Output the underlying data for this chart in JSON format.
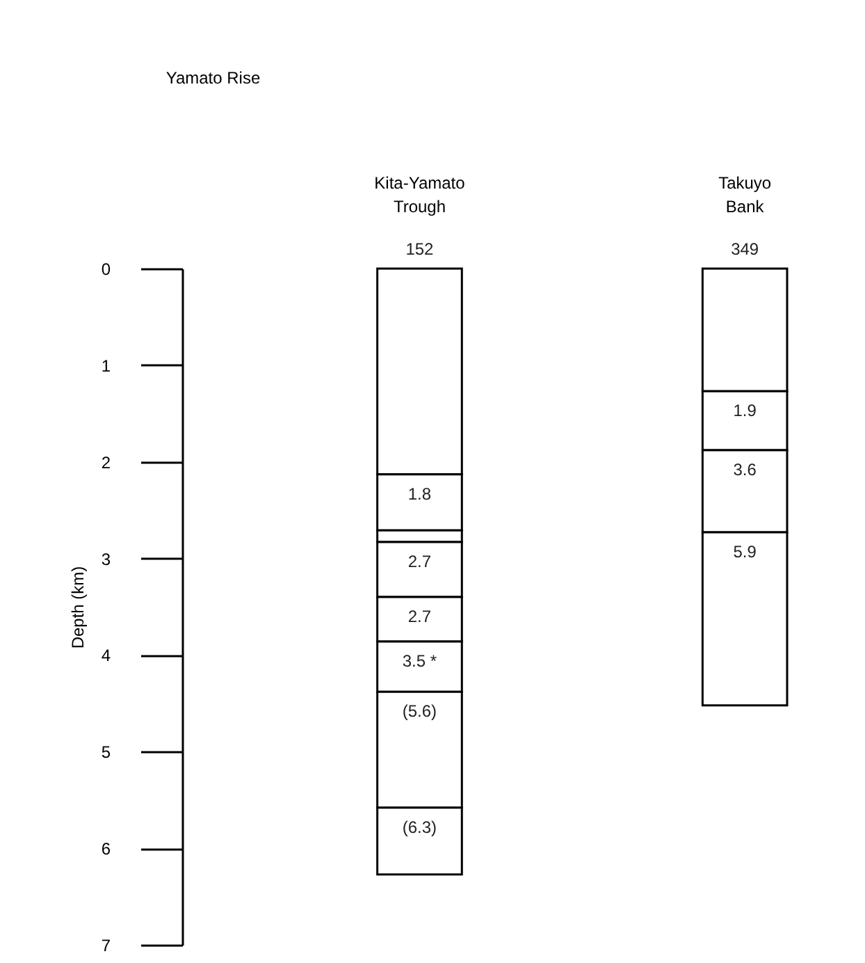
{
  "chart_data": {
    "type": "bar",
    "stacked": true,
    "title": "Yamato Rise",
    "ylabel": "Depth (km)",
    "categories": [
      "Kita-Yamato Trough",
      "Takuyo Bank"
    ],
    "series": [
      {
        "color": "#ffffff",
        "values": [
          2.13,
          1.27
        ]
      },
      {
        "color": "#ffffff",
        "values": [
          0.58,
          0.61
        ]
      },
      {
        "color": "#ffffff",
        "values": [
          0.12,
          0.85
        ]
      },
      {
        "color": "#ffffff",
        "values": [
          0.57,
          1.79
        ]
      },
      {
        "color": "#ffffff",
        "values": [
          0.46,
          null
        ]
      },
      {
        "color": "#ffffff",
        "values": [
          0.52,
          null
        ]
      },
      {
        "color": "#ffffff",
        "values": [
          1.2,
          null
        ]
      },
      {
        "color": "#ffffff",
        "values": [
          0.69,
          null
        ]
      }
    ],
    "annotations": [
      {
        "text": "152",
        "x": "Kita-Yamato Trough",
        "y": 0
      },
      {
        "text": "349",
        "x": "Takuyo Bank",
        "y": 0
      },
      {
        "text": "1.8",
        "x": "Kita-Yamato Trough",
        "y": 2.13
      },
      {
        "text": "2.7",
        "x": "Kita-Yamato Trough",
        "y": 2.83
      },
      {
        "text": "2.7",
        "x": "Kita-Yamato Trough",
        "y": 3.4
      },
      {
        "text": "3.5 *",
        "x": "Kita-Yamato Trough",
        "y": 3.86
      },
      {
        "text": "(5.6)",
        "x": "Kita-Yamato Trough",
        "y": 4.38
      },
      {
        "text": "(6.3)",
        "x": "Kita-Yamato Trough",
        "y": 5.58
      },
      {
        "text": "1.9",
        "x": "Takuyo Bank",
        "y": 1.27
      },
      {
        "text": "3.6",
        "x": "Takuyo Bank",
        "y": 1.88
      },
      {
        "text": "5.9",
        "x": "Takuyo Bank",
        "y": 2.73
      }
    ],
    "ylim": [
      7,
      0
    ],
    "yticks": [
      0,
      1,
      2,
      3,
      4,
      5,
      6,
      7
    ],
    "grid": false
  }
}
